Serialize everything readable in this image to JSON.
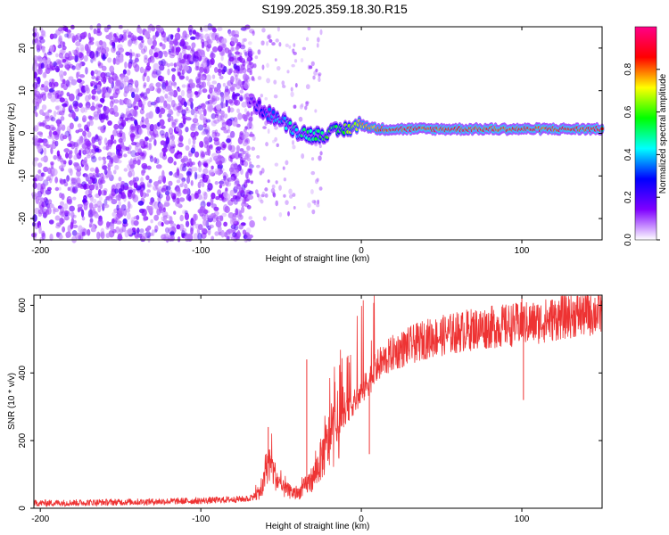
{
  "title": "S199.2025.359.18.30.R15",
  "chart_data": [
    {
      "type": "heatmap",
      "name": "spectrogram",
      "xlabel": "Height of straight line (km)",
      "ylabel": "Frequency (Hz)",
      "xlim": [
        -204,
        150
      ],
      "ylim": [
        -25,
        25
      ],
      "xticks": [
        -200,
        -100,
        0,
        100
      ],
      "yticks": [
        -20,
        -10,
        0,
        10,
        20
      ],
      "colorbar": {
        "label": "Normalized spectral amplitude",
        "range": [
          0,
          1
        ],
        "ticks": [
          "0.0",
          "0.2",
          "0.4",
          "0.6",
          "0.8"
        ],
        "stops": [
          "#ffffff",
          "#7f00ff",
          "#0000ff",
          "#00ffff",
          "#00ff00",
          "#ffff00",
          "#ff0000",
          "#ff0088"
        ]
      },
      "ridge": {
        "description": "carrier line frequency vs height",
        "x": [
          -70,
          -60,
          -50,
          -40,
          -30,
          -20,
          -10,
          0,
          10,
          20,
          40,
          60,
          80,
          100,
          120,
          150
        ],
        "freq": [
          8,
          5,
          3,
          0.5,
          -0.5,
          0,
          1,
          2,
          1,
          1,
          1,
          1,
          1,
          1,
          1,
          1
        ],
        "amplitude": [
          0.15,
          0.3,
          0.4,
          0.45,
          0.5,
          0.55,
          0.6,
          0.75,
          0.8,
          0.85,
          0.85,
          0.85,
          0.85,
          0.85,
          0.85,
          0.85
        ]
      },
      "noise_region": {
        "x": [
          -204,
          -68
        ],
        "amplitude": 0.15
      }
    },
    {
      "type": "line",
      "name": "snr",
      "xlabel": "Height of straight line (km)",
      "ylabel": "SNR (10 * v/v)",
      "xlim": [
        -204,
        150
      ],
      "ylim": [
        0,
        630
      ],
      "xticks": [
        -200,
        -100,
        0,
        100
      ],
      "yticks": [
        0,
        200,
        400,
        600
      ],
      "color": "#ee3333",
      "trend": {
        "x": [
          -204,
          -150,
          -100,
          -70,
          -62,
          -58,
          -50,
          -40,
          -30,
          -20,
          -10,
          0,
          10,
          20,
          30,
          40,
          50,
          60,
          70,
          80,
          90,
          100,
          110,
          120,
          130,
          140,
          150
        ],
        "y": [
          15,
          18,
          22,
          28,
          50,
          140,
          60,
          40,
          90,
          200,
          280,
          340,
          420,
          460,
          480,
          500,
          510,
          520,
          530,
          535,
          540,
          545,
          550,
          560,
          570,
          575,
          580
        ]
      },
      "spikes": [
        {
          "x": -58,
          "y": 240
        },
        {
          "x": -34,
          "y": 440
        },
        {
          "x": 100,
          "y": 630
        },
        {
          "x": 101,
          "y": 320
        },
        {
          "x": 5,
          "y": 160
        }
      ]
    }
  ]
}
